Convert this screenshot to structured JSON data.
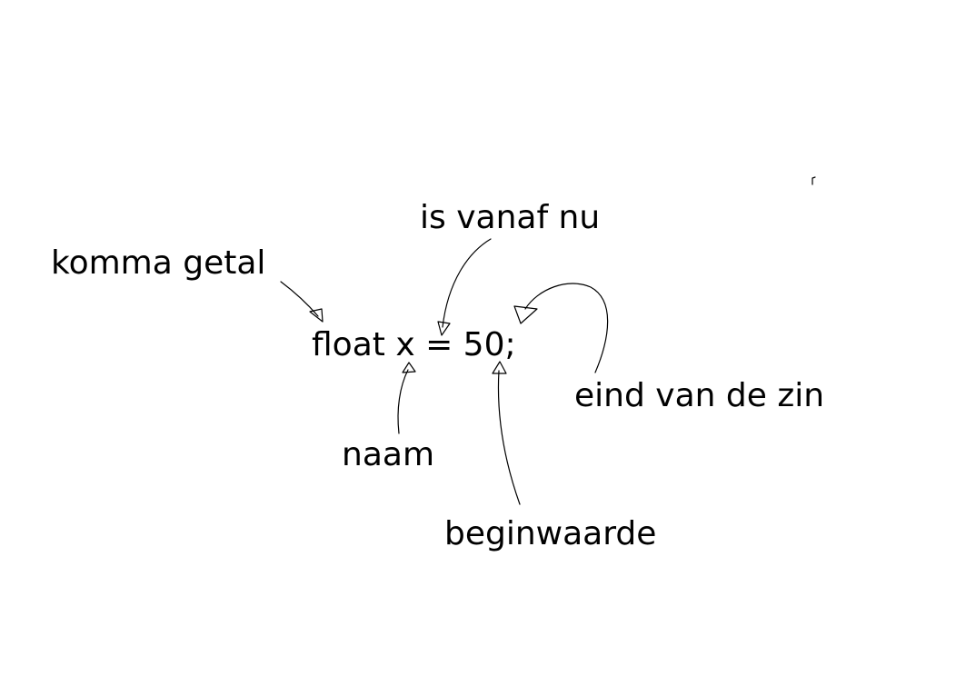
{
  "diagram": {
    "code_line": "float x = 50;",
    "annotations": {
      "type": "komma getal",
      "assignment": "is vanaf nu",
      "name": "naam",
      "initial_value": "beginwaarde",
      "statement_end": "eind van de zin"
    }
  }
}
